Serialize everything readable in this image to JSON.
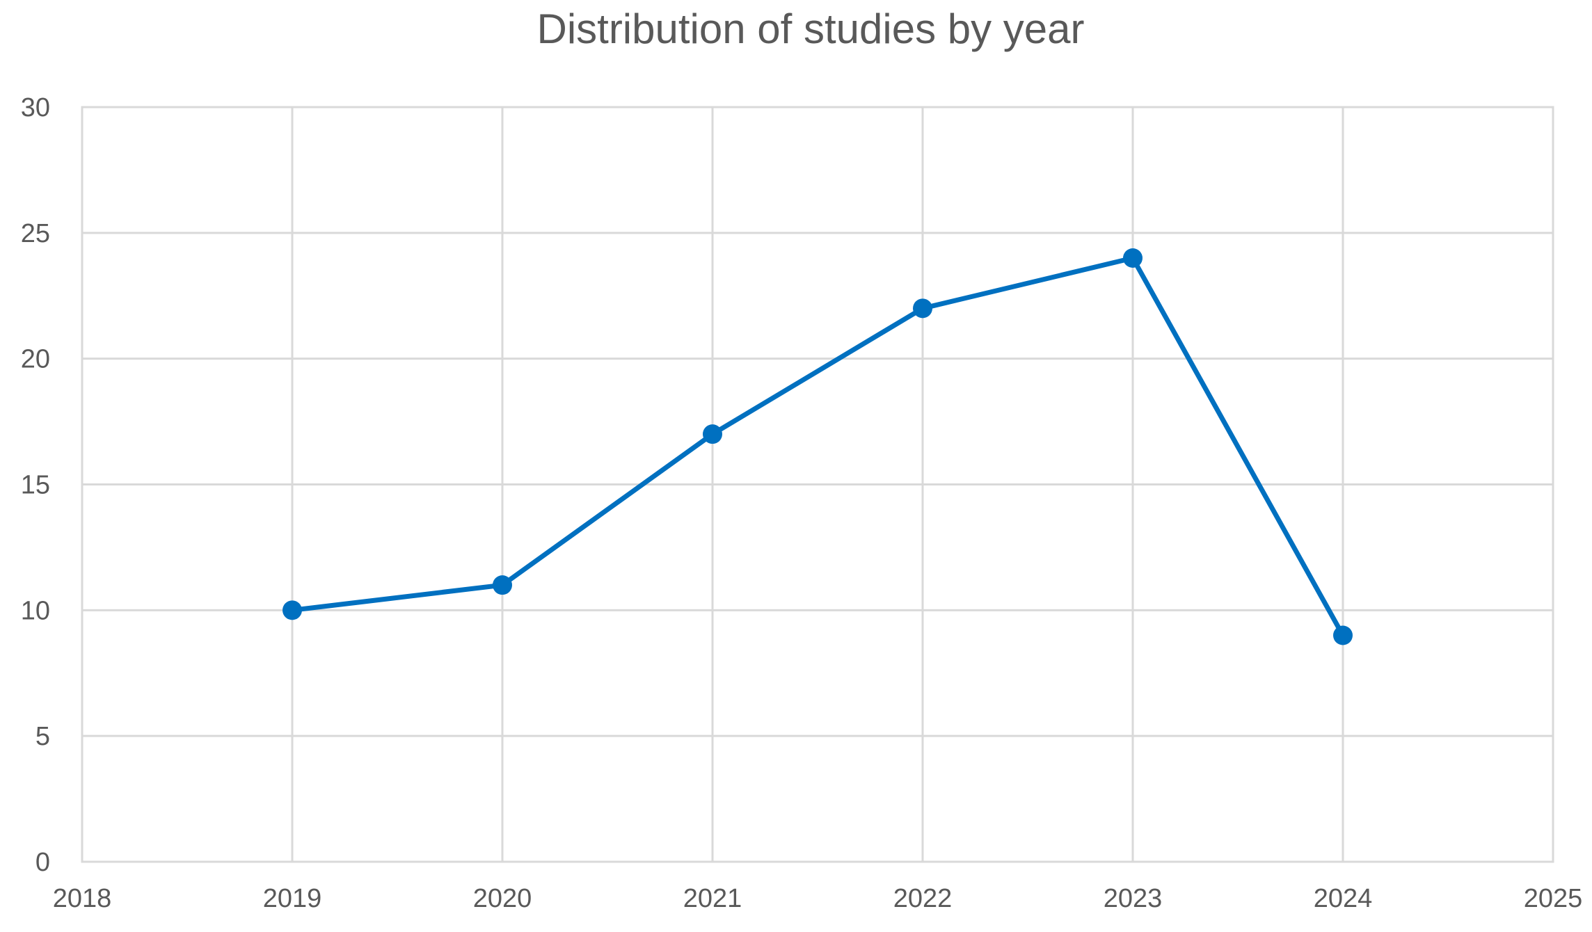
{
  "chart_data": {
    "type": "scatter",
    "title": "Distribution of studies by year",
    "xlabel": "",
    "ylabel": "",
    "xlim": [
      2018,
      2025
    ],
    "ylim": [
      0,
      30
    ],
    "x_ticks": [
      2018,
      2019,
      2020,
      2021,
      2022,
      2023,
      2024,
      2025
    ],
    "y_ticks": [
      0,
      5,
      10,
      15,
      20,
      25,
      30
    ],
    "grid": true,
    "legend": "none",
    "series": [
      {
        "style": "line-with-markers",
        "color": "#0070c0",
        "x": [
          2019,
          2020,
          2021,
          2022,
          2023,
          2024
        ],
        "y": [
          10,
          11,
          17,
          22,
          24,
          9
        ]
      }
    ]
  }
}
